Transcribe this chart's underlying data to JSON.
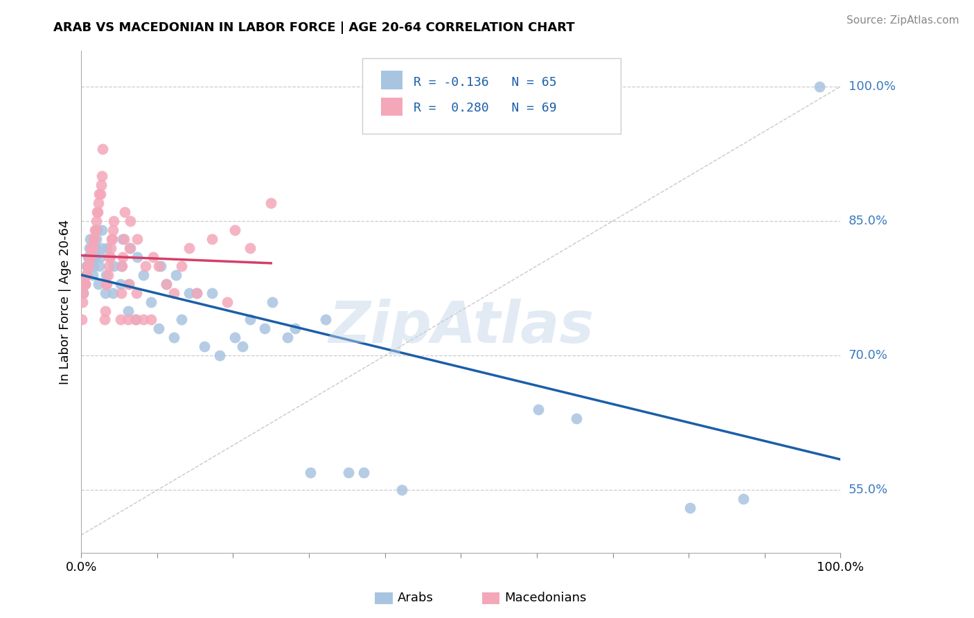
{
  "title": "ARAB VS MACEDONIAN IN LABOR FORCE | AGE 20-64 CORRELATION CHART",
  "source": "Source: ZipAtlas.com",
  "ylabel": "In Labor Force | Age 20-64",
  "xlim": [
    0.0,
    100.0
  ],
  "ylim": [
    48.0,
    104.0
  ],
  "yticks": [
    55.0,
    70.0,
    85.0,
    100.0
  ],
  "ytick_labels": [
    "55.0%",
    "70.0%",
    "85.0%",
    "100.0%"
  ],
  "xticks": [
    0,
    10,
    20,
    30,
    40,
    50,
    60,
    70,
    80,
    90,
    100
  ],
  "xtick_labels": [
    "0.0%",
    "",
    "",
    "",
    "",
    "",
    "",
    "",
    "",
    "",
    "100.0%"
  ],
  "legend_arab_R": "R = -0.136",
  "legend_arab_N": "N = 65",
  "legend_mac_R": "R =  0.280",
  "legend_mac_N": "N = 69",
  "legend_arab_label": "Arabs",
  "legend_mac_label": "Macedonians",
  "arab_color": "#a8c4e0",
  "mac_color": "#f4a7b9",
  "arab_trend_color": "#1a5fa8",
  "mac_trend_color": "#d43f6a",
  "watermark": "ZipAtlas",
  "background_color": "#ffffff",
  "grid_color": "#cccccc",
  "arab_x": [
    0.3,
    0.4,
    0.5,
    0.6,
    0.7,
    0.8,
    0.9,
    1.0,
    1.1,
    1.2,
    1.5,
    1.6,
    1.7,
    1.8,
    1.9,
    2.0,
    2.1,
    2.3,
    2.4,
    2.5,
    2.6,
    2.7,
    3.2,
    3.3,
    3.4,
    4.2,
    4.3,
    5.2,
    5.3,
    5.5,
    6.2,
    6.3,
    6.5,
    7.2,
    7.4,
    8.2,
    9.2,
    10.2,
    10.5,
    11.2,
    12.2,
    12.5,
    13.2,
    14.2,
    15.2,
    16.2,
    17.2,
    18.2,
    20.2,
    21.2,
    22.2,
    24.2,
    25.2,
    27.2,
    28.2,
    30.2,
    32.2,
    35.2,
    37.2,
    42.2,
    60.2,
    65.2,
    80.2,
    87.2,
    97.2
  ],
  "arab_y": [
    77.0,
    78.0,
    78.0,
    79.0,
    80.0,
    80.0,
    81.0,
    81.0,
    82.0,
    83.0,
    79.0,
    80.0,
    81.0,
    81.0,
    82.0,
    83.0,
    84.0,
    78.0,
    80.0,
    81.0,
    82.0,
    84.0,
    77.0,
    79.0,
    82.0,
    77.0,
    80.0,
    78.0,
    80.0,
    83.0,
    75.0,
    78.0,
    82.0,
    74.0,
    81.0,
    79.0,
    76.0,
    73.0,
    80.0,
    78.0,
    72.0,
    79.0,
    74.0,
    77.0,
    77.0,
    71.0,
    77.0,
    70.0,
    72.0,
    71.0,
    74.0,
    73.0,
    76.0,
    72.0,
    73.0,
    57.0,
    74.0,
    57.0,
    57.0,
    55.0,
    64.0,
    63.0,
    53.0,
    54.0,
    100.0
  ],
  "mac_x": [
    0.1,
    0.2,
    0.3,
    0.4,
    0.5,
    0.6,
    0.7,
    0.8,
    0.9,
    1.0,
    1.1,
    1.2,
    1.3,
    1.4,
    1.5,
    1.6,
    1.7,
    1.8,
    1.9,
    2.0,
    2.1,
    2.2,
    2.3,
    2.4,
    2.5,
    2.6,
    2.7,
    2.8,
    3.1,
    3.2,
    3.3,
    3.4,
    3.5,
    3.6,
    3.7,
    3.8,
    3.9,
    4.0,
    4.1,
    4.2,
    4.3,
    5.2,
    5.3,
    5.4,
    5.5,
    5.6,
    5.7,
    6.2,
    6.3,
    6.4,
    6.5,
    7.2,
    7.3,
    7.4,
    8.2,
    8.5,
    9.2,
    9.5,
    10.2,
    11.2,
    12.2,
    13.2,
    14.2,
    15.2,
    17.2,
    19.2,
    20.2,
    22.2,
    25.0
  ],
  "mac_y": [
    74.0,
    76.0,
    77.0,
    78.0,
    78.0,
    79.0,
    79.0,
    80.0,
    80.0,
    80.0,
    81.0,
    81.0,
    82.0,
    82.0,
    82.0,
    83.0,
    83.0,
    84.0,
    84.0,
    85.0,
    86.0,
    86.0,
    87.0,
    88.0,
    88.0,
    89.0,
    90.0,
    93.0,
    74.0,
    75.0,
    78.0,
    78.0,
    79.0,
    80.0,
    81.0,
    81.0,
    82.0,
    83.0,
    83.0,
    84.0,
    85.0,
    74.0,
    77.0,
    80.0,
    81.0,
    83.0,
    86.0,
    74.0,
    78.0,
    82.0,
    85.0,
    74.0,
    77.0,
    83.0,
    74.0,
    80.0,
    74.0,
    81.0,
    80.0,
    78.0,
    77.0,
    80.0,
    82.0,
    77.0,
    83.0,
    76.0,
    84.0,
    82.0,
    87.0
  ]
}
